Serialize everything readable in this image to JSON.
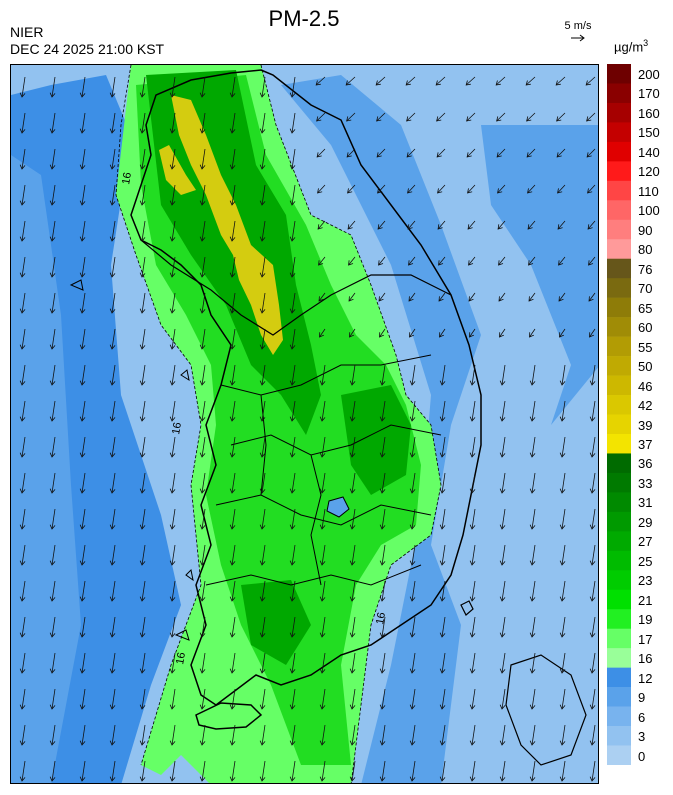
{
  "header": {
    "title": "PM-2.5",
    "agency": "NIER",
    "datetime": "DEC 24 2025 21:00 KST",
    "wind_reference": "5 m/s",
    "unit_base": "µg/m",
    "unit_exp": "3"
  },
  "legend": {
    "levels": [
      {
        "label": "200",
        "color": "#6e0000"
      },
      {
        "label": "170",
        "color": "#8a0000"
      },
      {
        "label": "160",
        "color": "#a60000"
      },
      {
        "label": "150",
        "color": "#c40000"
      },
      {
        "label": "140",
        "color": "#e00000"
      },
      {
        "label": "120",
        "color": "#ff1a1a"
      },
      {
        "label": "110",
        "color": "#ff4545"
      },
      {
        "label": "100",
        "color": "#ff6666"
      },
      {
        "label": "90",
        "color": "#ff7e7e"
      },
      {
        "label": "80",
        "color": "#ff9a9a"
      },
      {
        "label": "76",
        "color": "#66561a"
      },
      {
        "label": "70",
        "color": "#7a6a10"
      },
      {
        "label": "65",
        "color": "#8e7c08"
      },
      {
        "label": "60",
        "color": "#a08c06"
      },
      {
        "label": "55",
        "color": "#b29c04"
      },
      {
        "label": "50",
        "color": "#c0aa02"
      },
      {
        "label": "46",
        "color": "#cdb800"
      },
      {
        "label": "42",
        "color": "#dac800"
      },
      {
        "label": "39",
        "color": "#e6d400"
      },
      {
        "label": "37",
        "color": "#f3e400"
      },
      {
        "label": "36",
        "color": "#006b00"
      },
      {
        "label": "33",
        "color": "#007a00"
      },
      {
        "label": "31",
        "color": "#008a00"
      },
      {
        "label": "29",
        "color": "#009a00"
      },
      {
        "label": "27",
        "color": "#00aa00"
      },
      {
        "label": "25",
        "color": "#00bb00"
      },
      {
        "label": "23",
        "color": "#00cc00"
      },
      {
        "label": "21",
        "color": "#00e000"
      },
      {
        "label": "19",
        "color": "#22f022"
      },
      {
        "label": "17",
        "color": "#66ff66"
      },
      {
        "label": "16",
        "color": "#99ff99"
      },
      {
        "label": "12",
        "color": "#3d8fe6"
      },
      {
        "label": "9",
        "color": "#5aa2ea"
      },
      {
        "label": "6",
        "color": "#78b3ee"
      },
      {
        "label": "3",
        "color": "#92c2f0"
      },
      {
        "label": "0",
        "color": "#acd0f2"
      }
    ]
  },
  "map": {
    "contour_labels": [
      "16",
      "16",
      "16",
      "16"
    ],
    "colors": {
      "background": "#92c2f0",
      "sea_low": "#5aa2ea",
      "sea_mid": "#3d8fe6",
      "light_green": "#66ff66",
      "green": "#22dd22",
      "dark_green": "#00a800",
      "yellow": "#d4cc10",
      "coast": "#000000"
    }
  }
}
